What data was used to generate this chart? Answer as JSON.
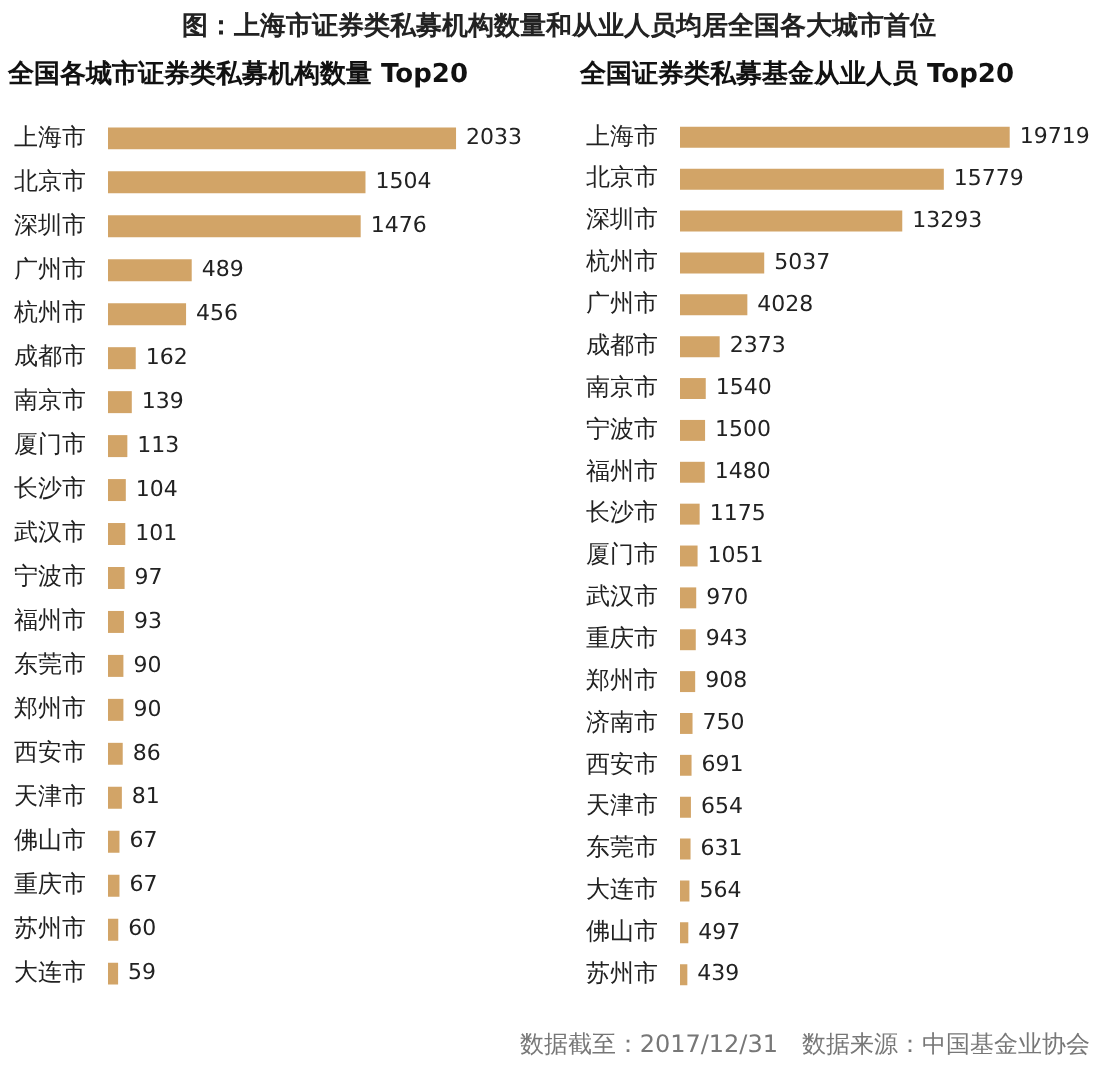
{
  "chart_data": [
    {
      "type": "bar",
      "orientation": "horizontal",
      "title": "全国各城市证券类私募机构数量 Top20",
      "annotations": [
        "图：上海市证券类私募机构数量和从业人员均居全国各大城市首位"
      ],
      "categories": [
        "上海市",
        "北京市",
        "深圳市",
        "广州市",
        "杭州市",
        "成都市",
        "南京市",
        "厦门市",
        "长沙市",
        "武汉市",
        "宁波市",
        "福州市",
        "东莞市",
        "郑州市",
        "西安市",
        "天津市",
        "佛山市",
        "重庆市",
        "苏州市",
        "大连市"
      ],
      "values": [
        2033,
        1504,
        1476,
        489,
        456,
        162,
        139,
        113,
        104,
        101,
        97,
        93,
        90,
        90,
        86,
        81,
        67,
        67,
        60,
        59
      ],
      "color": "#d2a467",
      "data_labels": true,
      "legend": false,
      "tick_labels": "y"
    },
    {
      "type": "bar",
      "orientation": "horizontal",
      "title": "全国证券类私募基金从业人员 Top20",
      "annotations": [
        "数据截至：2017/12/31　数据来源：中国基金业协会"
      ],
      "categories": [
        "上海市",
        "北京市",
        "深圳市",
        "杭州市",
        "广州市",
        "成都市",
        "南京市",
        "宁波市",
        "福州市",
        "长沙市",
        "厦门市",
        "武汉市",
        "重庆市",
        "郑州市",
        "济南市",
        "西安市",
        "天津市",
        "东莞市",
        "大连市",
        "佛山市",
        "苏州市"
      ],
      "values": [
        19719,
        15779,
        13293,
        5037,
        4028,
        2373,
        1540,
        1500,
        1480,
        1175,
        1051,
        970,
        943,
        908,
        750,
        691,
        654,
        631,
        564,
        497,
        439
      ],
      "color": "#d2a467",
      "data_labels": true,
      "legend": false,
      "tick_labels": "y"
    }
  ]
}
